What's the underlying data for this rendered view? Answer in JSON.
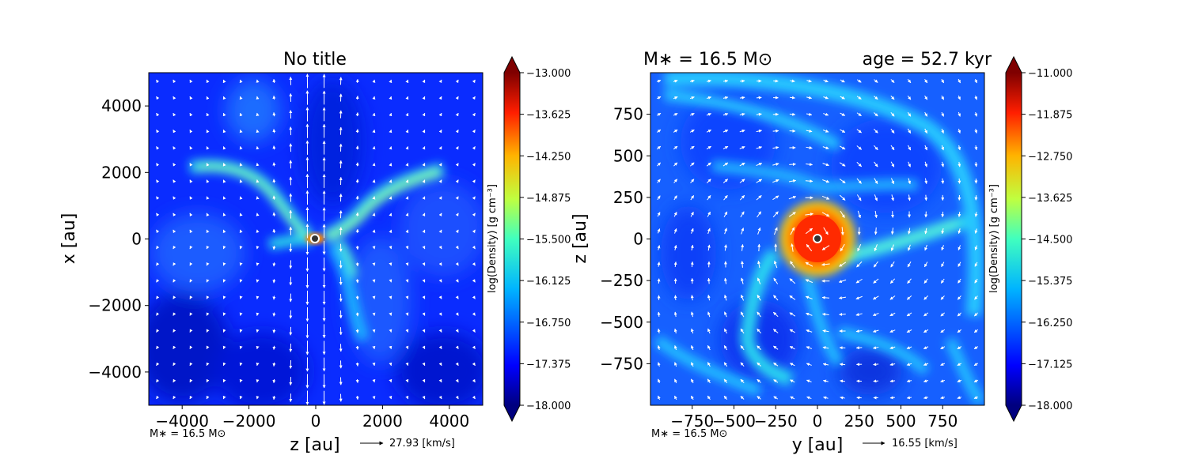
{
  "chart_data": [
    {
      "type": "heatmap",
      "title": "No title",
      "xlabel": "z [au]",
      "ylabel": "x [au]",
      "xlim": [
        -5000,
        5000
      ],
      "ylim": [
        -5000,
        5000
      ],
      "xticks": [
        -4000,
        -2000,
        0,
        2000,
        4000
      ],
      "yticks": [
        -4000,
        -2000,
        0,
        2000,
        4000
      ],
      "xtick_labels": [
        "−4000",
        "−2000",
        "0",
        "2000",
        "4000"
      ],
      "ytick_labels": [
        "−4000",
        "−2000",
        "0",
        "2000",
        "4000"
      ],
      "colorbar": {
        "label": "log(Density) [g cm⁻³]",
        "range": [
          -18.0,
          -13.0
        ],
        "ticks": [
          -13.0,
          -13.625,
          -14.25,
          -14.875,
          -15.5,
          -16.125,
          -16.75,
          -17.375,
          -18.0
        ],
        "tick_labels": [
          "−13.000",
          "−13.625",
          "−14.250",
          "−14.875",
          "−15.500",
          "−16.125",
          "−16.750",
          "−17.375",
          "−18.000"
        ],
        "colormap": "jet"
      },
      "mass_note": "M∗ = 16.5 M⊙",
      "velocity_key": "27.93 [km/s]"
    },
    {
      "type": "heatmap",
      "title_left": "M∗ = 16.5 M⊙",
      "title_right": "age = 52.7 kyr",
      "xlabel": "y [au]",
      "ylabel": "z [au]",
      "xlim": [
        -1000,
        1000
      ],
      "ylim": [
        -1000,
        1000
      ],
      "xticks": [
        -750,
        -500,
        -250,
        0,
        250,
        500,
        750
      ],
      "yticks": [
        750,
        500,
        250,
        0,
        -250,
        -500,
        -750
      ],
      "xtick_labels": [
        "−750",
        "−500",
        "−250",
        "0",
        "250",
        "500",
        "750"
      ],
      "ytick_labels": [
        "750",
        "500",
        "250",
        "0",
        "−250",
        "−500",
        "−750"
      ],
      "colorbar": {
        "label": "log(Density) [g cm⁻³]",
        "range": [
          -18.0,
          -11.0
        ],
        "ticks": [
          -11.0,
          -11.875,
          -12.75,
          -13.625,
          -14.5,
          -15.375,
          -16.25,
          -17.125,
          -18.0
        ],
        "tick_labels": [
          "−11.000",
          "−11.875",
          "−12.750",
          "−13.625",
          "−14.500",
          "−15.375",
          "−16.250",
          "−17.125",
          "−18.000"
        ],
        "colormap": "jet"
      },
      "mass_note": "M∗ = 16.5 M⊙",
      "velocity_key": "16.55 [km/s]"
    }
  ]
}
